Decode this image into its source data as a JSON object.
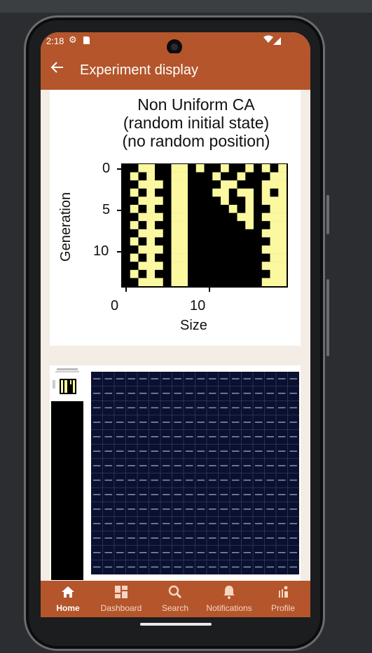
{
  "status_bar": {
    "time": "2:18"
  },
  "app_bar": {
    "title": "Experiment display",
    "back_icon": "arrow-left-icon"
  },
  "chart1": {
    "title_line1": "Non Uniform CA",
    "title_line2": "(random initial state)",
    "title_line3": "(no random position)",
    "ylabel": "Generation",
    "xlabel": "Size",
    "y_ticks": [
      "0",
      "5",
      "10"
    ],
    "x_ticks": [
      "0",
      "10"
    ]
  },
  "chart_data": {
    "type": "heatmap",
    "title": "Non Uniform CA (random initial state) (no random position)",
    "xlabel": "Size",
    "ylabel": "Generation",
    "x_ticks": [
      0,
      10
    ],
    "y_ticks": [
      0,
      5,
      10
    ],
    "colors": {
      "on": "#fbf8a0",
      "off": "#000000"
    },
    "rows": 15,
    "cols": 20,
    "grid": [
      [
        0,
        0,
        1,
        1,
        0,
        0,
        1,
        1,
        0,
        1,
        0,
        0,
        1,
        0,
        0,
        1,
        0,
        1,
        0,
        1
      ],
      [
        0,
        1,
        0,
        1,
        0,
        0,
        1,
        1,
        0,
        0,
        0,
        1,
        0,
        0,
        1,
        0,
        0,
        0,
        1,
        1
      ],
      [
        0,
        0,
        1,
        1,
        1,
        0,
        1,
        1,
        0,
        0,
        0,
        0,
        1,
        1,
        0,
        0,
        0,
        1,
        1,
        1
      ],
      [
        0,
        1,
        0,
        1,
        0,
        0,
        1,
        1,
        0,
        0,
        0,
        1,
        1,
        0,
        1,
        1,
        0,
        1,
        0,
        1
      ],
      [
        0,
        0,
        1,
        1,
        1,
        0,
        1,
        1,
        0,
        0,
        0,
        0,
        1,
        0,
        0,
        1,
        0,
        1,
        1,
        1
      ],
      [
        0,
        1,
        0,
        1,
        0,
        0,
        1,
        1,
        0,
        0,
        0,
        0,
        0,
        1,
        0,
        1,
        0,
        0,
        1,
        1
      ],
      [
        0,
        0,
        1,
        1,
        1,
        0,
        1,
        1,
        0,
        0,
        0,
        0,
        0,
        0,
        1,
        1,
        0,
        1,
        1,
        1
      ],
      [
        0,
        1,
        0,
        1,
        0,
        0,
        1,
        1,
        0,
        0,
        0,
        0,
        0,
        0,
        0,
        1,
        0,
        0,
        1,
        1
      ],
      [
        0,
        0,
        1,
        1,
        1,
        0,
        1,
        1,
        0,
        0,
        0,
        0,
        0,
        0,
        0,
        0,
        0,
        1,
        1,
        1
      ],
      [
        0,
        1,
        0,
        1,
        0,
        0,
        1,
        1,
        0,
        0,
        0,
        0,
        0,
        0,
        0,
        0,
        0,
        0,
        1,
        1
      ],
      [
        0,
        0,
        1,
        1,
        1,
        0,
        1,
        1,
        0,
        0,
        0,
        0,
        0,
        0,
        0,
        0,
        0,
        1,
        1,
        1
      ],
      [
        0,
        1,
        0,
        1,
        0,
        0,
        1,
        1,
        0,
        0,
        0,
        0,
        0,
        0,
        0,
        0,
        0,
        0,
        1,
        1
      ],
      [
        0,
        0,
        1,
        1,
        1,
        0,
        1,
        1,
        0,
        0,
        0,
        0,
        0,
        0,
        0,
        0,
        0,
        1,
        1,
        1
      ],
      [
        0,
        1,
        0,
        1,
        0,
        0,
        1,
        1,
        0,
        0,
        0,
        0,
        0,
        0,
        0,
        0,
        0,
        0,
        1,
        1
      ],
      [
        0,
        0,
        1,
        1,
        1,
        0,
        1,
        1,
        0,
        0,
        0,
        0,
        0,
        0,
        0,
        0,
        0,
        1,
        1,
        1
      ]
    ]
  },
  "bottom_nav": {
    "items": [
      {
        "label": "Home",
        "icon": "home-icon",
        "active": true
      },
      {
        "label": "Dashboard",
        "icon": "dashboard-icon",
        "active": false
      },
      {
        "label": "Search",
        "icon": "search-icon",
        "active": false
      },
      {
        "label": "Notifications",
        "icon": "bell-icon",
        "active": false
      },
      {
        "label": "Profile",
        "icon": "profile-icon",
        "active": false
      }
    ]
  },
  "theme": {
    "primary": "#b4552b",
    "background": "#f3ede6",
    "on_color": "#fbf8a0"
  }
}
